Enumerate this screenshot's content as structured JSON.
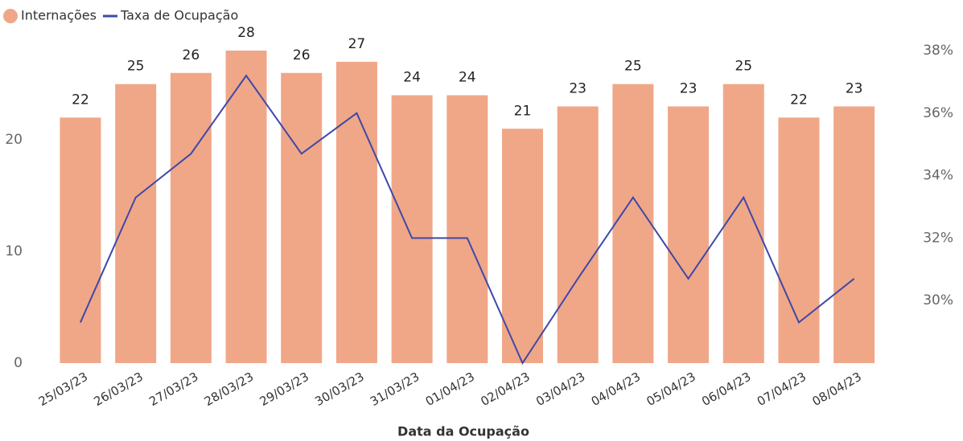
{
  "chart_data": {
    "type": "bar_line",
    "x_label": "Data da Ocupação",
    "categories": [
      "25/03/23",
      "26/03/23",
      "27/03/23",
      "28/03/23",
      "29/03/23",
      "30/03/23",
      "31/03/23",
      "01/04/23",
      "02/04/23",
      "03/04/23",
      "04/04/23",
      "05/04/23",
      "06/04/23",
      "07/04/23",
      "08/04/23"
    ],
    "series": [
      {
        "name": "Internações",
        "type": "bar",
        "color": "#f0a787",
        "values": [
          22,
          25,
          26,
          28,
          26,
          27,
          24,
          24,
          21,
          23,
          25,
          23,
          25,
          22,
          23
        ]
      },
      {
        "name": "Taxa de Ocupação",
        "type": "line",
        "axis": "y2",
        "color": "#3f48a8",
        "values": [
          29.3,
          33.3,
          34.7,
          37.2,
          34.7,
          36.0,
          32.0,
          32.0,
          28.0,
          30.7,
          33.3,
          30.7,
          33.3,
          29.3,
          30.7
        ]
      }
    ],
    "ylim": [
      0,
      28
    ],
    "yticks": [
      0,
      10,
      20
    ],
    "y2lim": [
      28,
      38
    ],
    "y2ticks": [
      {
        "value": 30,
        "label": "30%"
      },
      {
        "value": 32,
        "label": "32%"
      },
      {
        "value": 34,
        "label": "34%"
      },
      {
        "value": 36,
        "label": "36%"
      },
      {
        "value": 38,
        "label": "38%"
      }
    ],
    "legend": "top-left"
  }
}
